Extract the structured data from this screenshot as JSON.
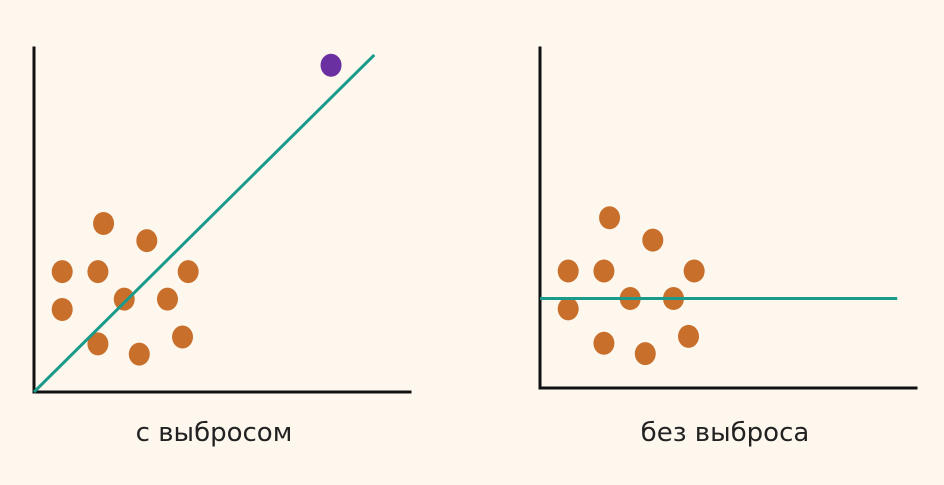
{
  "colors": {
    "background": "#fdf7ee",
    "axis": "#111111",
    "points": "#c8702b",
    "outlier": "#6a2fa0",
    "fit_line": "#1a9a8a"
  },
  "chart_data": [
    {
      "type": "scatter",
      "caption": "с выбросом",
      "xlim": [
        0,
        10
      ],
      "ylim": [
        0,
        10
      ],
      "axes_visible": [
        "left",
        "bottom"
      ],
      "ticks": false,
      "grid": false,
      "points": [
        {
          "x": 1.85,
          "y": 4.9
        },
        {
          "x": 3.0,
          "y": 4.4
        },
        {
          "x": 0.75,
          "y": 3.5
        },
        {
          "x": 1.7,
          "y": 3.5
        },
        {
          "x": 4.1,
          "y": 3.5
        },
        {
          "x": 0.75,
          "y": 2.4
        },
        {
          "x": 2.4,
          "y": 2.7
        },
        {
          "x": 3.55,
          "y": 2.7
        },
        {
          "x": 1.7,
          "y": 1.4
        },
        {
          "x": 2.8,
          "y": 1.1
        },
        {
          "x": 3.95,
          "y": 1.6
        }
      ],
      "outliers": [
        {
          "x": 7.9,
          "y": 9.5
        }
      ],
      "fit_line": {
        "x1": 0,
        "y1": 0,
        "x2": 9.05,
        "y2": 9.8
      }
    },
    {
      "type": "scatter",
      "caption": "без выброса",
      "xlim": [
        0,
        10
      ],
      "ylim": [
        0,
        10
      ],
      "axes_visible": [
        "left",
        "bottom"
      ],
      "ticks": false,
      "grid": false,
      "points": [
        {
          "x": 1.85,
          "y": 4.95
        },
        {
          "x": 3.0,
          "y": 4.3
        },
        {
          "x": 0.75,
          "y": 3.4
        },
        {
          "x": 1.7,
          "y": 3.4
        },
        {
          "x": 4.1,
          "y": 3.4
        },
        {
          "x": 0.75,
          "y": 2.3
        },
        {
          "x": 2.4,
          "y": 2.6
        },
        {
          "x": 3.55,
          "y": 2.6
        },
        {
          "x": 1.7,
          "y": 1.3
        },
        {
          "x": 2.8,
          "y": 1.0
        },
        {
          "x": 3.95,
          "y": 1.5
        }
      ],
      "outliers": [],
      "fit_line": {
        "x1": 0,
        "y1": 2.6,
        "x2": 9.5,
        "y2": 2.6
      }
    }
  ]
}
